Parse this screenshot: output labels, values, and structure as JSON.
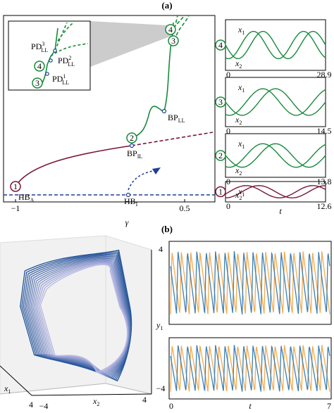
{
  "panel_a": {
    "label": "(a)",
    "x_axis_label": "γ",
    "x_ticks": [
      "−1",
      "0.5"
    ],
    "points": [
      {
        "base": "HB",
        "sub": "A"
      },
      {
        "base": "HB",
        "sub": "I"
      },
      {
        "base": "BP",
        "sub": "IL"
      },
      {
        "base": "BP",
        "sub": "LL"
      }
    ],
    "inset_points": [
      {
        "base": "PD",
        "sup": "3",
        "sub": "LL"
      },
      {
        "base": "PD",
        "sup": "2",
        "sub": "LL"
      },
      {
        "base": "PD",
        "sup": "1",
        "sub": "LL"
      }
    ],
    "markers": [
      "1",
      "2",
      "3",
      "4"
    ],
    "time_series": [
      {
        "marker": "4",
        "x1": {
          "base": "x",
          "sub": "1"
        },
        "x2": {
          "base": "x",
          "sub": "2"
        },
        "t_start": "0",
        "t_end": "28.9"
      },
      {
        "marker": "3",
        "x1": {
          "base": "x",
          "sub": "1"
        },
        "x2": {
          "base": "x",
          "sub": "2"
        },
        "t_start": "0",
        "t_end": "14.5"
      },
      {
        "marker": "2",
        "x1": {
          "base": "x",
          "sub": "1"
        },
        "x2": {
          "base": "x",
          "sub": "2"
        },
        "t_start": "0",
        "t_end": "13.8"
      },
      {
        "marker": "1",
        "x1": {
          "base": "x",
          "sub": "1"
        },
        "x2": {
          "base": "x",
          "sub": "2"
        },
        "t_start": "0",
        "t_end": "12.6"
      }
    ],
    "time_label": "t"
  },
  "panel_b": {
    "label": "(b)",
    "z_ticks": [
      "4",
      "−4"
    ],
    "z_label": {
      "base": "y",
      "sub": "1"
    },
    "x1_label": {
      "base": "x",
      "sub": "1"
    },
    "x1_tick": "4",
    "x2_label": {
      "base": "x",
      "sub": "2"
    },
    "x2_ticks": [
      "−4",
      "4"
    ],
    "time_label": "t",
    "t_ticks": [
      "0",
      "7"
    ]
  }
}
